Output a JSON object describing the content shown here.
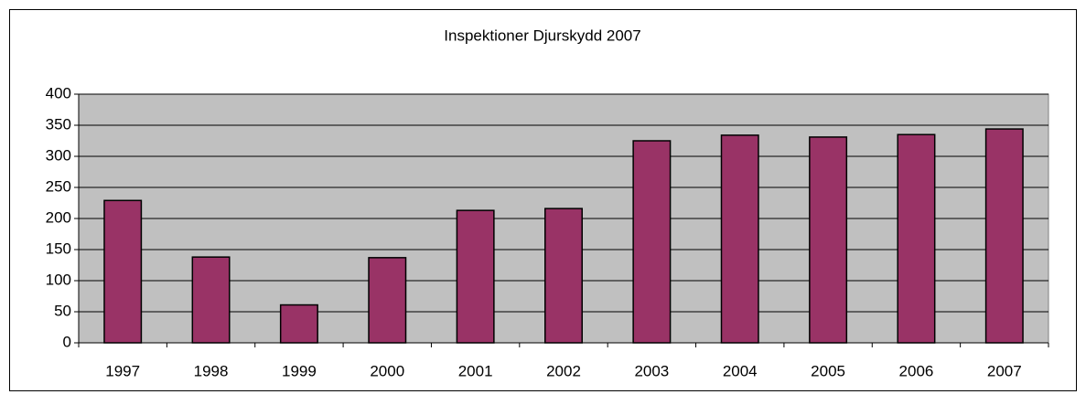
{
  "chart_data": {
    "type": "bar",
    "title": "Inspektioner Djurskydd 2007",
    "categories": [
      "1997",
      "1998",
      "1999",
      "2000",
      "2001",
      "2002",
      "2003",
      "2004",
      "2005",
      "2006",
      "2007"
    ],
    "values": [
      229,
      138,
      61,
      137,
      213,
      216,
      325,
      334,
      331,
      335,
      344
    ],
    "color": "#993366",
    "ylim": [
      0,
      400
    ],
    "yticks": [
      0,
      50,
      100,
      150,
      200,
      250,
      300,
      350,
      400
    ],
    "grid": true
  }
}
